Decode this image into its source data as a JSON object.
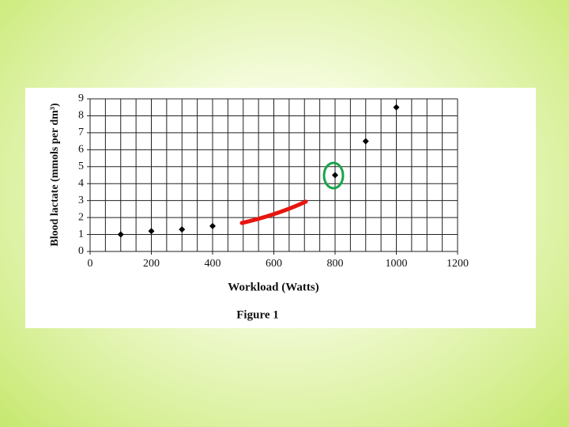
{
  "chart_data": {
    "type": "scatter",
    "xlabel": "Workload (Watts)",
    "ylabel": "Blood lactate (mmols per dm³)",
    "caption": "Figure 1",
    "x": [
      100,
      200,
      300,
      400,
      800,
      900,
      1000
    ],
    "values": [
      1,
      1.2,
      1.3,
      1.5,
      4.5,
      6.5,
      8.5
    ],
    "color": "#000000",
    "xlim": [
      0,
      1200
    ],
    "xticks": [
      0,
      200,
      400,
      600,
      800,
      1000,
      1200
    ],
    "ylim": [
      0,
      9
    ],
    "yticks": [
      0,
      1,
      2,
      3,
      4,
      5,
      6,
      7,
      8,
      9
    ],
    "x_grid_step": 50,
    "grid": true
  }
}
